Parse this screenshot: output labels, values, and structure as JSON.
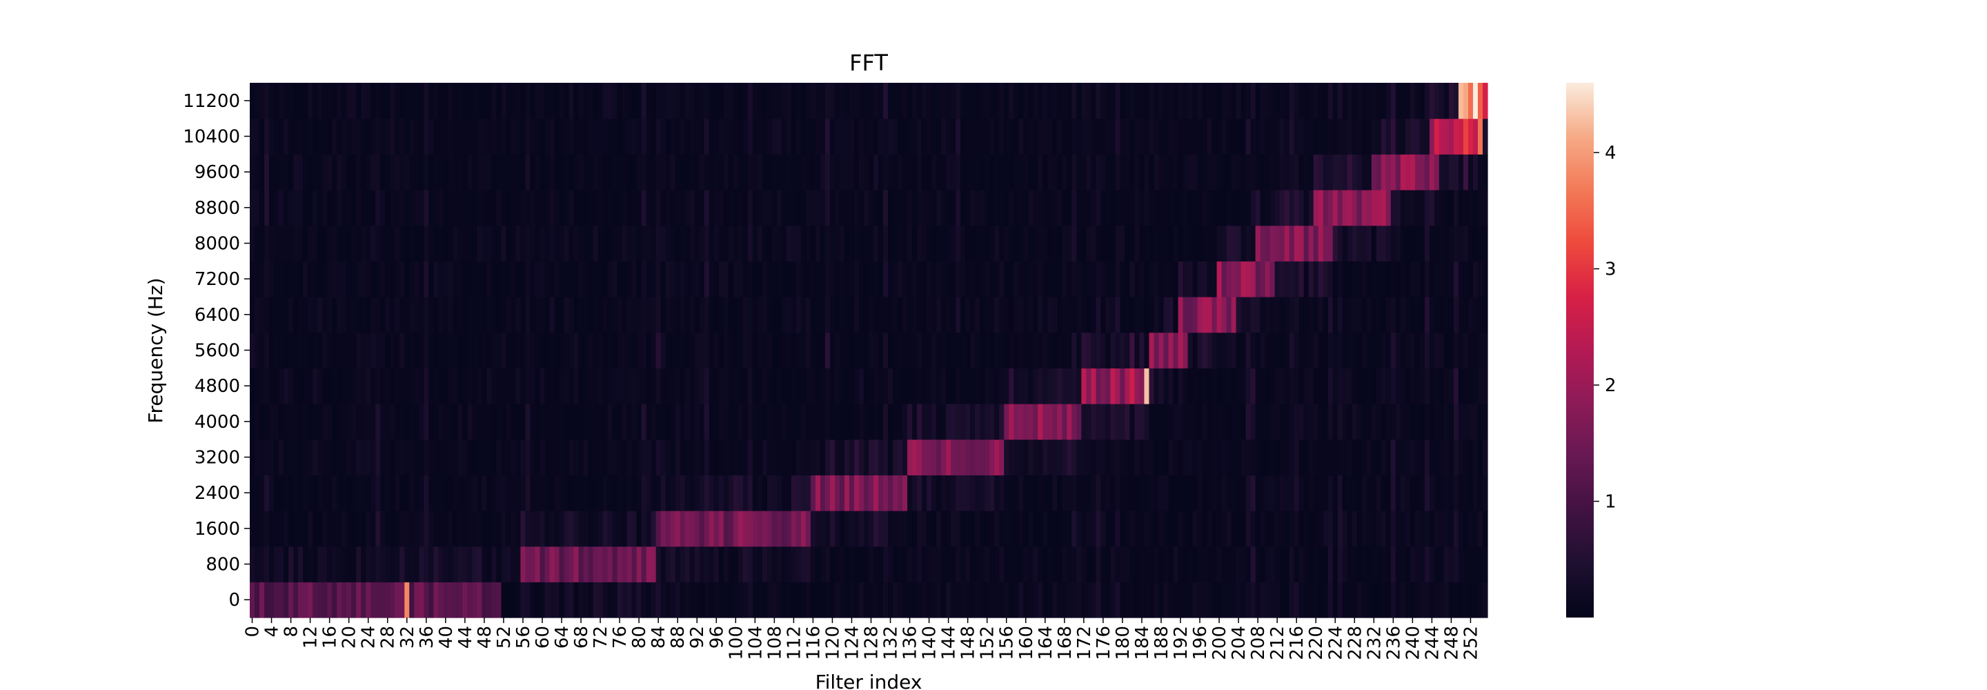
{
  "chart_data": {
    "type": "heatmap",
    "title": "FFT",
    "xlabel": "Filter index",
    "ylabel": "Frequency (Hz)",
    "x_tick_labels": [
      "0",
      "4",
      "8",
      "12",
      "16",
      "20",
      "24",
      "28",
      "32",
      "36",
      "40",
      "44",
      "48",
      "52",
      "56",
      "60",
      "64",
      "68",
      "72",
      "76",
      "80",
      "84",
      "88",
      "92",
      "96",
      "100",
      "104",
      "108",
      "112",
      "116",
      "120",
      "124",
      "128",
      "132",
      "136",
      "140",
      "144",
      "148",
      "152",
      "156",
      "160",
      "164",
      "168",
      "172",
      "176",
      "180",
      "184",
      "188",
      "192",
      "196",
      "200",
      "204",
      "208",
      "212",
      "216",
      "220",
      "224",
      "228",
      "232",
      "236",
      "240",
      "244",
      "248",
      "252"
    ],
    "y_tick_labels": [
      "0",
      "800",
      "1600",
      "2400",
      "3200",
      "4000",
      "4800",
      "5600",
      "6400",
      "7200",
      "8000",
      "8800",
      "9600",
      "10400",
      "11200"
    ],
    "n_filters": 256,
    "frequency_bins_hz": [
      0,
      800,
      1600,
      2400,
      3200,
      4000,
      4800,
      5600,
      6400,
      7200,
      8000,
      8800,
      9600,
      10400,
      11200
    ],
    "colorbar": {
      "min": 0.0,
      "max": 4.6,
      "ticks": [
        "1",
        "2",
        "3",
        "4"
      ],
      "tick_values": [
        1,
        2,
        3,
        4
      ],
      "colormap": "rocket"
    },
    "grid": false,
    "dominant_ridge": [
      {
        "filter_range": [
          0,
          52
        ],
        "frequency_hz": 0,
        "intensity": 1.6
      },
      {
        "filter_range": [
          56,
          84
        ],
        "frequency_hz": 800,
        "intensity": 1.9
      },
      {
        "filter_range": [
          84,
          116
        ],
        "frequency_hz": 1600,
        "intensity": 2.0
      },
      {
        "filter_range": [
          116,
          136
        ],
        "frequency_hz": 2400,
        "intensity": 2.1
      },
      {
        "filter_range": [
          136,
          156
        ],
        "frequency_hz": 3200,
        "intensity": 2.2
      },
      {
        "filter_range": [
          156,
          172
        ],
        "frequency_hz": 4000,
        "intensity": 2.3
      },
      {
        "filter_range": [
          172,
          186
        ],
        "frequency_hz": 4800,
        "intensity": 2.6
      },
      {
        "filter_range": [
          186,
          194
        ],
        "frequency_hz": 5600,
        "intensity": 2.2
      },
      {
        "filter_range": [
          192,
          204
        ],
        "frequency_hz": 6400,
        "intensity": 2.3
      },
      {
        "filter_range": [
          200,
          212
        ],
        "frequency_hz": 7200,
        "intensity": 2.3
      },
      {
        "filter_range": [
          208,
          224
        ],
        "frequency_hz": 8000,
        "intensity": 2.3
      },
      {
        "filter_range": [
          220,
          236
        ],
        "frequency_hz": 8800,
        "intensity": 2.3
      },
      {
        "filter_range": [
          232,
          246
        ],
        "frequency_hz": 9600,
        "intensity": 2.4
      },
      {
        "filter_range": [
          244,
          254
        ],
        "frequency_hz": 10400,
        "intensity": 3.2
      },
      {
        "filter_range": [
          250,
          256
        ],
        "frequency_hz": 11200,
        "intensity": 4.4
      }
    ],
    "peaks": [
      {
        "filter": 32,
        "frequency_hz": 0,
        "value": 3.8
      },
      {
        "filter": 185,
        "frequency_hz": 4800,
        "value": 4.3
      },
      {
        "filter": 253,
        "frequency_hz": 11200,
        "value": 4.6
      },
      {
        "filter": 254,
        "frequency_hz": 10400,
        "value": 3.6
      }
    ]
  }
}
